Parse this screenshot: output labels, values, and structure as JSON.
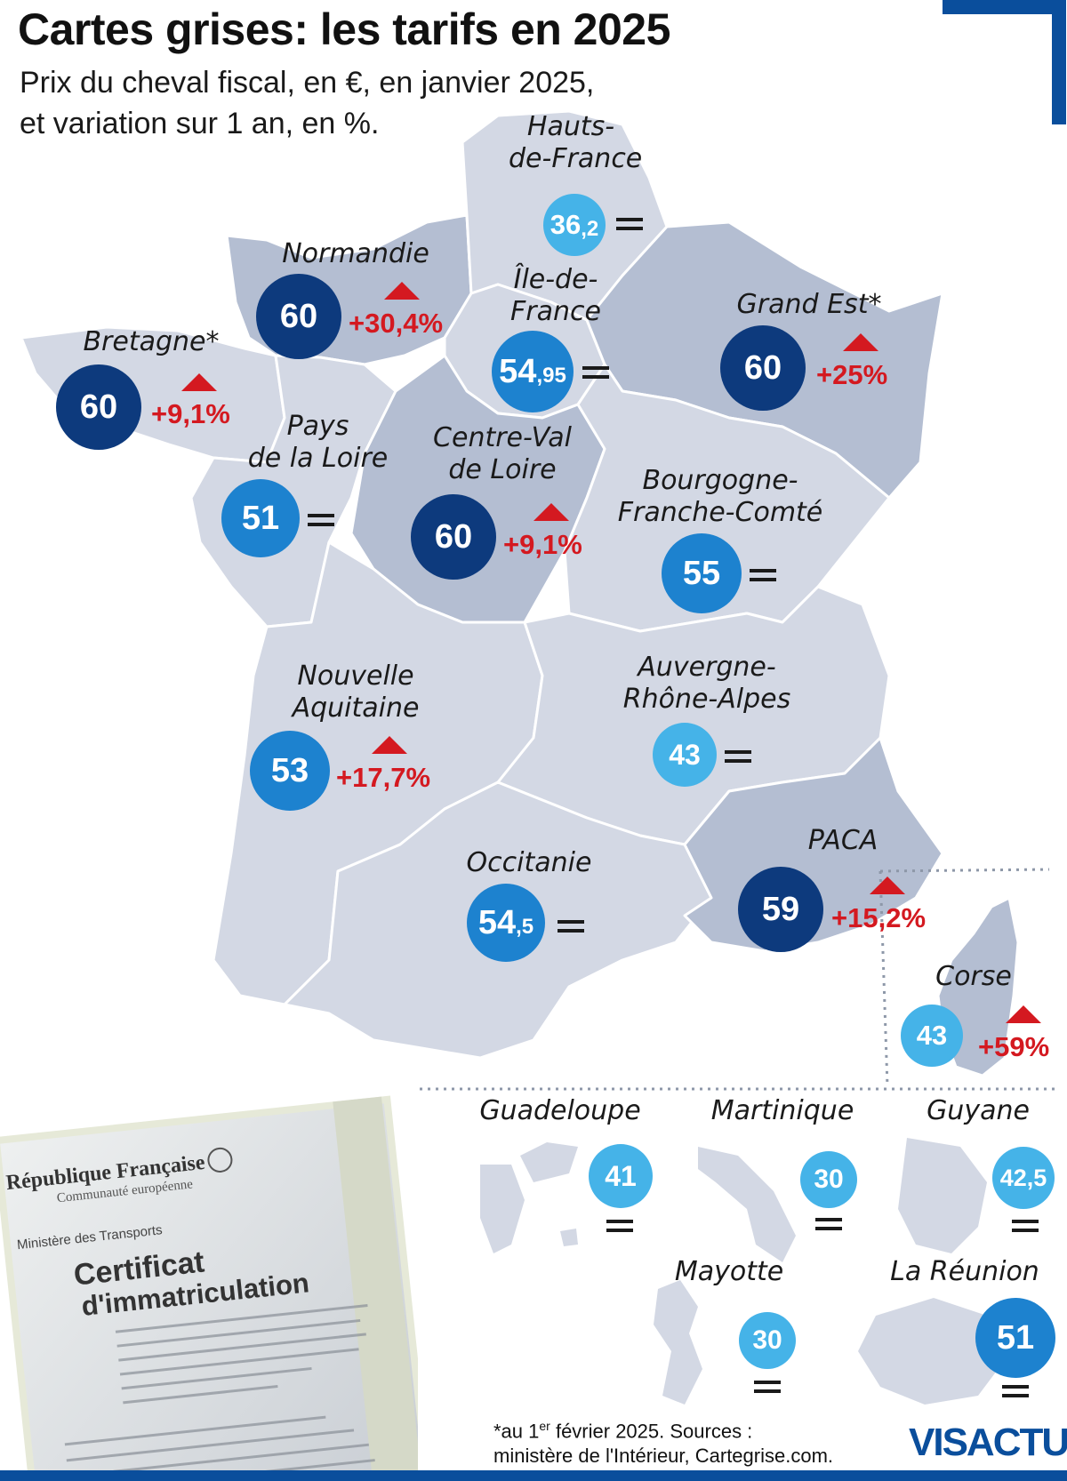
{
  "header": {
    "title": "Cartes grises: les tarifs en 2025",
    "subtitle_line1": "Prix du cheval fiscal, en €, en janvier 2025,",
    "subtitle_line2": "et variation sur 1 an, en %."
  },
  "colors": {
    "dark": "#0d3a7d",
    "mid": "#1d82cf",
    "light": "#45b3e8",
    "increase": "#d41920",
    "land": "#d3d8e4",
    "land_dark": "#b4bed2"
  },
  "regions": [
    {
      "id": "hauts-de-france",
      "name1": "Hauts-",
      "name2": "de-France",
      "int": "36",
      "dec": ",2",
      "change": "=",
      "tone": "light"
    },
    {
      "id": "normandie",
      "name1": "Normandie",
      "name2": "",
      "int": "60",
      "dec": "",
      "change": "+30,4%",
      "tone": "dark"
    },
    {
      "id": "ile-de-france",
      "name1": "Île-de-",
      "name2": "France",
      "int": "54",
      "dec": ",95",
      "change": "=",
      "tone": "mid"
    },
    {
      "id": "grand-est",
      "name1": "Grand Est*",
      "name2": "",
      "int": "60",
      "dec": "",
      "change": "+25%",
      "tone": "dark"
    },
    {
      "id": "bretagne",
      "name1": "Bretagne*",
      "name2": "",
      "int": "60",
      "dec": "",
      "change": "+9,1%",
      "tone": "dark"
    },
    {
      "id": "pays-de-la-loire",
      "name1": "Pays",
      "name2": "de la Loire",
      "int": "51",
      "dec": "",
      "change": "=",
      "tone": "mid"
    },
    {
      "id": "centre-val-de-loire",
      "name1": "Centre-Val",
      "name2": "de Loire",
      "int": "60",
      "dec": "",
      "change": "+9,1%",
      "tone": "dark"
    },
    {
      "id": "bourgogne-franche-comte",
      "name1": "Bourgogne-",
      "name2": "Franche-Comté",
      "int": "55",
      "dec": "",
      "change": "=",
      "tone": "mid"
    },
    {
      "id": "nouvelle-aquitaine",
      "name1": "Nouvelle",
      "name2": "Aquitaine",
      "int": "53",
      "dec": "",
      "change": "+17,7%",
      "tone": "mid"
    },
    {
      "id": "auvergne-rhone-alpes",
      "name1": "Auvergne-",
      "name2": "Rhône-Alpes",
      "int": "43",
      "dec": "",
      "change": "=",
      "tone": "light"
    },
    {
      "id": "occitanie",
      "name1": "Occitanie",
      "name2": "",
      "int": "54",
      "dec": ",5",
      "change": "=",
      "tone": "mid"
    },
    {
      "id": "paca",
      "name1": "PACA",
      "name2": "",
      "int": "59",
      "dec": "",
      "change": "+15,2%",
      "tone": "dark"
    },
    {
      "id": "corse",
      "name1": "Corse",
      "name2": "",
      "int": "43",
      "dec": "",
      "change": "+59%",
      "tone": "light"
    },
    {
      "id": "guadeloupe",
      "name1": "Guadeloupe",
      "name2": "",
      "int": "41",
      "dec": "",
      "change": "=",
      "tone": "light"
    },
    {
      "id": "martinique",
      "name1": "Martinique",
      "name2": "",
      "int": "30",
      "dec": "",
      "change": "=",
      "tone": "light"
    },
    {
      "id": "guyane",
      "name1": "Guyane",
      "name2": "",
      "int": "42,5",
      "dec": "",
      "change": "=",
      "tone": "light"
    },
    {
      "id": "mayotte",
      "name1": "Mayotte",
      "name2": "",
      "int": "30",
      "dec": "",
      "change": "=",
      "tone": "light"
    },
    {
      "id": "la-reunion",
      "name1": "La Réunion",
      "name2": "",
      "int": "51",
      "dec": "",
      "change": "=",
      "tone": "mid"
    }
  ],
  "document_photo": {
    "line1": "République Française",
    "line2": "Communauté européenne",
    "line3": "Ministère des Transports",
    "line4": "Certificat",
    "line5": "d'immatriculation"
  },
  "footnote": {
    "prefix": "*au 1",
    "sup": "er",
    "rest": " février 2025. Sources :",
    "line2": "ministère de l'Intérieur, Cartegrise.com."
  },
  "brand": "VISACTU"
}
